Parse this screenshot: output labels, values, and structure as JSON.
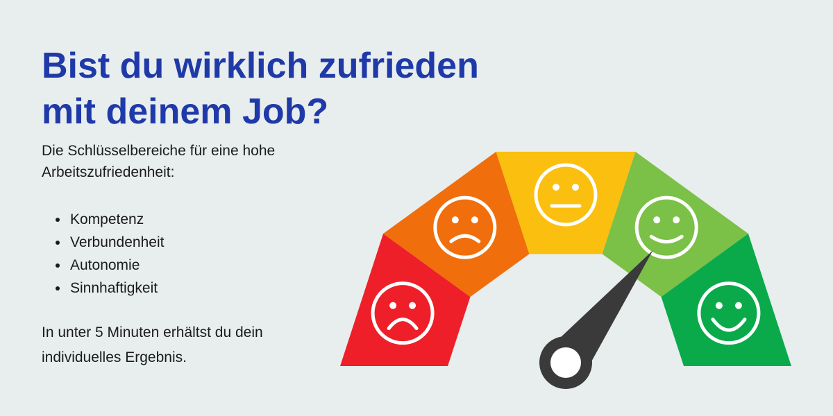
{
  "headline": {
    "line1": "Bist du wirklich zufrieden",
    "line2": "mit deinem Job?"
  },
  "intro": {
    "line1": "Die Schlüsselbereiche für eine hohe",
    "line2": "Arbeitszufriedenheit:"
  },
  "key_areas": [
    {
      "label": "Kompetenz"
    },
    {
      "label": "Verbundenheit"
    },
    {
      "label": "Autonomie"
    },
    {
      "label": "Sinnhaftigkeit"
    }
  ],
  "result": {
    "line1": "In unter 5 Minuten erhältst du dein",
    "line2": "individuelles Ergebnis."
  },
  "gauge": {
    "segments": [
      {
        "mood": "very-sad",
        "color": "#ee1f28"
      },
      {
        "mood": "sad",
        "color": "#f06e0c"
      },
      {
        "mood": "neutral",
        "color": "#fbbf10"
      },
      {
        "mood": "happy",
        "color": "#7bc047"
      },
      {
        "mood": "very-happy",
        "color": "#0aaa4b"
      }
    ],
    "needle_color": "#3a3a3a",
    "needle_level": 0.71
  }
}
